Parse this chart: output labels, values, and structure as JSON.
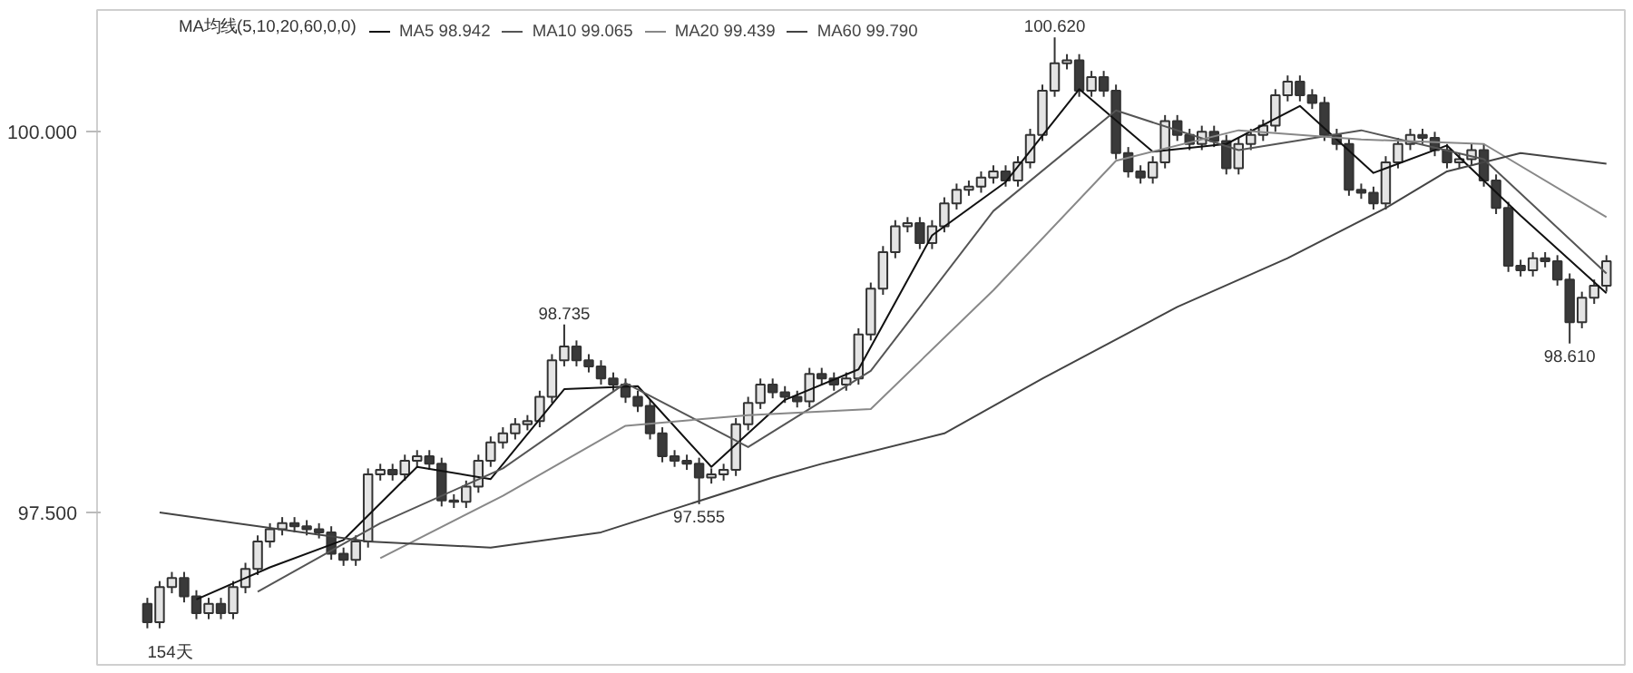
{
  "chart_data": {
    "type": "candlestick",
    "legend_title": "MA均线(5,10,20,60,0,0)",
    "legend": "top left",
    "grid": false,
    "categories": [
      null,
      null,
      null,
      null,
      null,
      null,
      null,
      null,
      null,
      null,
      null,
      null,
      null,
      null,
      null,
      null,
      null,
      null,
      null,
      null,
      null,
      null,
      null,
      null,
      null,
      null,
      null,
      null,
      null,
      null,
      null,
      null,
      null,
      null,
      null,
      null,
      null,
      null,
      null,
      null,
      null,
      null,
      null,
      null,
      null,
      null,
      null,
      null,
      null,
      null,
      null,
      null,
      null,
      null,
      null,
      null,
      null,
      null,
      null,
      null,
      null,
      null,
      null,
      null,
      null,
      null,
      null,
      null,
      null,
      null,
      null,
      null,
      null,
      null,
      null,
      null,
      null,
      null,
      null,
      null,
      null,
      null,
      null,
      null,
      null,
      null,
      null,
      null,
      null,
      null,
      null,
      null,
      null,
      null,
      null,
      null,
      null,
      null,
      null,
      null,
      null,
      null,
      null,
      null,
      null,
      null,
      null,
      null,
      null,
      null,
      null,
      null,
      null,
      null,
      null,
      null,
      null,
      null,
      null,
      null
    ],
    "ylim": [
      96.5,
      100.8
    ],
    "yticks": [
      {
        "value": 97.5,
        "label": "97.500"
      },
      {
        "value": 100.0,
        "label": "100.000"
      }
    ],
    "ohlc": [
      [
        96.9,
        96.94,
        96.74,
        96.78
      ],
      [
        96.78,
        97.05,
        96.74,
        97.01
      ],
      [
        97.01,
        97.11,
        96.97,
        97.07
      ],
      [
        97.07,
        97.11,
        96.91,
        96.95
      ],
      [
        96.95,
        96.99,
        96.8,
        96.84
      ],
      [
        96.84,
        96.94,
        96.8,
        96.9
      ],
      [
        96.9,
        96.94,
        96.8,
        96.84
      ],
      [
        96.84,
        97.05,
        96.8,
        97.01
      ],
      [
        97.01,
        97.17,
        96.97,
        97.13
      ],
      [
        97.13,
        97.35,
        97.09,
        97.31
      ],
      [
        97.31,
        97.43,
        97.27,
        97.39
      ],
      [
        97.39,
        97.47,
        97.35,
        97.43
      ],
      [
        97.43,
        97.47,
        97.37,
        97.41
      ],
      [
        97.41,
        97.45,
        97.35,
        97.39
      ],
      [
        97.39,
        97.43,
        97.33,
        97.37
      ],
      [
        97.37,
        97.41,
        97.19,
        97.23
      ],
      [
        97.23,
        97.27,
        97.15,
        97.19
      ],
      [
        97.19,
        97.35,
        97.15,
        97.31
      ],
      [
        97.31,
        97.79,
        97.27,
        97.75
      ],
      [
        97.75,
        97.82,
        97.71,
        97.78
      ],
      [
        97.78,
        97.82,
        97.71,
        97.75
      ],
      [
        97.75,
        97.88,
        97.71,
        97.84
      ],
      [
        97.84,
        97.91,
        97.8,
        97.87
      ],
      [
        97.87,
        97.91,
        97.78,
        97.82
      ],
      [
        97.82,
        97.86,
        97.54,
        97.58
      ],
      [
        97.58,
        97.62,
        97.53,
        97.57
      ],
      [
        97.57,
        97.71,
        97.53,
        97.67
      ],
      [
        97.67,
        97.88,
        97.63,
        97.84
      ],
      [
        97.84,
        98.0,
        97.8,
        97.96
      ],
      [
        97.96,
        98.06,
        97.92,
        98.02
      ],
      [
        98.02,
        98.12,
        97.98,
        98.08
      ],
      [
        98.08,
        98.14,
        98.04,
        98.1
      ],
      [
        98.1,
        98.3,
        98.06,
        98.26
      ],
      [
        98.26,
        98.54,
        98.22,
        98.5
      ],
      [
        98.5,
        98.735,
        98.46,
        98.59
      ],
      [
        98.59,
        98.63,
        98.46,
        98.5
      ],
      [
        98.5,
        98.54,
        98.42,
        98.46
      ],
      [
        98.46,
        98.5,
        98.34,
        98.38
      ],
      [
        98.38,
        98.42,
        98.3,
        98.34
      ],
      [
        98.34,
        98.38,
        98.22,
        98.26
      ],
      [
        98.26,
        98.3,
        98.16,
        98.2
      ],
      [
        98.2,
        98.24,
        97.98,
        98.02
      ],
      [
        98.02,
        98.06,
        97.83,
        97.87
      ],
      [
        97.87,
        97.91,
        97.8,
        97.84
      ],
      [
        97.84,
        97.88,
        97.78,
        97.82
      ],
      [
        97.82,
        97.86,
        97.555,
        97.73
      ],
      [
        97.73,
        97.79,
        97.69,
        97.75
      ],
      [
        97.75,
        97.82,
        97.71,
        97.78
      ],
      [
        97.78,
        98.12,
        97.74,
        98.08
      ],
      [
        98.08,
        98.26,
        98.04,
        98.22
      ],
      [
        98.22,
        98.38,
        98.18,
        98.34
      ],
      [
        98.34,
        98.38,
        98.25,
        98.29
      ],
      [
        98.29,
        98.33,
        98.22,
        98.26
      ],
      [
        98.26,
        98.3,
        98.19,
        98.23
      ],
      [
        98.23,
        98.45,
        98.19,
        98.41
      ],
      [
        98.41,
        98.45,
        98.34,
        98.38
      ],
      [
        98.38,
        98.42,
        98.3,
        98.34
      ],
      [
        98.34,
        98.42,
        98.3,
        98.38
      ],
      [
        98.38,
        98.71,
        98.34,
        98.67
      ],
      [
        98.67,
        99.01,
        98.63,
        98.97
      ],
      [
        98.97,
        99.25,
        98.93,
        99.21
      ],
      [
        99.21,
        99.42,
        99.17,
        99.38
      ],
      [
        99.38,
        99.44,
        99.34,
        99.4
      ],
      [
        99.4,
        99.44,
        99.23,
        99.27
      ],
      [
        99.27,
        99.42,
        99.23,
        99.38
      ],
      [
        99.38,
        99.57,
        99.34,
        99.53
      ],
      [
        99.53,
        99.66,
        99.49,
        99.62
      ],
      [
        99.62,
        99.68,
        99.58,
        99.64
      ],
      [
        99.64,
        99.74,
        99.6,
        99.7
      ],
      [
        99.7,
        99.78,
        99.66,
        99.74
      ],
      [
        99.74,
        99.78,
        99.64,
        99.68
      ],
      [
        99.68,
        99.84,
        99.64,
        99.8
      ],
      [
        99.8,
        100.02,
        99.76,
        99.98
      ],
      [
        99.98,
        100.31,
        99.94,
        100.27
      ],
      [
        100.27,
        100.62,
        100.23,
        100.45
      ],
      [
        100.45,
        100.51,
        100.41,
        100.47
      ],
      [
        100.47,
        100.51,
        100.23,
        100.27
      ],
      [
        100.27,
        100.4,
        100.23,
        100.36
      ],
      [
        100.36,
        100.4,
        100.23,
        100.27
      ],
      [
        100.27,
        100.31,
        99.82,
        99.86
      ],
      [
        99.86,
        99.9,
        99.7,
        99.74
      ],
      [
        99.74,
        99.78,
        99.66,
        99.7
      ],
      [
        99.7,
        99.84,
        99.66,
        99.8
      ],
      [
        99.8,
        100.11,
        99.76,
        100.07
      ],
      [
        100.07,
        100.11,
        99.94,
        99.98
      ],
      [
        99.98,
        100.02,
        99.88,
        99.92
      ],
      [
        99.92,
        100.04,
        99.88,
        100.0
      ],
      [
        100.0,
        100.04,
        99.9,
        99.94
      ],
      [
        99.94,
        99.98,
        99.72,
        99.76
      ],
      [
        99.76,
        99.96,
        99.72,
        99.92
      ],
      [
        99.92,
        100.02,
        99.88,
        99.98
      ],
      [
        99.98,
        100.08,
        99.94,
        100.04
      ],
      [
        100.04,
        100.28,
        100.0,
        100.24
      ],
      [
        100.24,
        100.37,
        100.2,
        100.33
      ],
      [
        100.33,
        100.37,
        100.2,
        100.24
      ],
      [
        100.24,
        100.28,
        100.15,
        100.19
      ],
      [
        100.19,
        100.23,
        99.94,
        99.98
      ],
      [
        99.98,
        100.02,
        99.88,
        99.92
      ],
      [
        99.92,
        99.96,
        99.58,
        99.62
      ],
      [
        99.62,
        99.66,
        99.56,
        99.6
      ],
      [
        99.6,
        99.64,
        99.49,
        99.53
      ],
      [
        99.53,
        99.84,
        99.49,
        99.8
      ],
      [
        99.8,
        99.96,
        99.76,
        99.92
      ],
      [
        99.92,
        100.02,
        99.88,
        99.98
      ],
      [
        99.98,
        100.02,
        99.92,
        99.96
      ],
      [
        99.96,
        100.0,
        99.84,
        99.88
      ],
      [
        99.88,
        99.92,
        99.76,
        99.8
      ],
      [
        99.8,
        99.86,
        99.76,
        99.82
      ],
      [
        99.82,
        99.92,
        99.78,
        99.88
      ],
      [
        99.88,
        99.92,
        99.64,
        99.68
      ],
      [
        99.68,
        99.72,
        99.46,
        99.5
      ],
      [
        99.5,
        99.54,
        99.08,
        99.12
      ],
      [
        99.12,
        99.16,
        99.05,
        99.09
      ],
      [
        99.09,
        99.21,
        99.05,
        99.17
      ],
      [
        99.17,
        99.21,
        99.11,
        99.15
      ],
      [
        99.15,
        99.19,
        98.99,
        99.03
      ],
      [
        99.03,
        99.07,
        98.61,
        98.75
      ],
      [
        98.75,
        98.95,
        98.71,
        98.91
      ],
      [
        98.91,
        99.03,
        98.87,
        98.99
      ],
      [
        98.99,
        99.19,
        98.95,
        99.15
      ]
    ],
    "series": [
      {
        "name": "MA5 98.942",
        "type": "line",
        "color": "#111111",
        "values": [
          null,
          null,
          null,
          null,
          96.93,
          null,
          null,
          null,
          null,
          null,
          97.14,
          null,
          null,
          null,
          null,
          null,
          97.32,
          null,
          null,
          null,
          null,
          null,
          97.8,
          null,
          null,
          null,
          null,
          null,
          97.72,
          null,
          null,
          null,
          null,
          null,
          98.31,
          null,
          null,
          null,
          null,
          null,
          98.33,
          null,
          null,
          null,
          null,
          null,
          97.8,
          null,
          null,
          null,
          null,
          null,
          98.24,
          null,
          null,
          null,
          null,
          null,
          98.44,
          null,
          null,
          null,
          null,
          null,
          99.32,
          null,
          null,
          null,
          null,
          null,
          99.67,
          null,
          null,
          null,
          null,
          null,
          100.28,
          null,
          null,
          null,
          null,
          null,
          99.87,
          null,
          null,
          null,
          null,
          null,
          99.92,
          null,
          null,
          null,
          null,
          null,
          100.17,
          null,
          null,
          null,
          null,
          null,
          99.73,
          null,
          null,
          null,
          null,
          null,
          99.91,
          null,
          null,
          null,
          null,
          null,
          99.45,
          null,
          null,
          null,
          null,
          null,
          null,
          98.94
        ]
      },
      {
        "name": "MA10 99.065",
        "type": "line",
        "color": "#555555",
        "values": [
          null,
          null,
          null,
          null,
          null,
          null,
          null,
          null,
          null,
          96.98,
          null,
          null,
          null,
          null,
          null,
          null,
          null,
          null,
          null,
          97.43,
          null,
          null,
          null,
          null,
          null,
          null,
          null,
          null,
          null,
          97.79,
          null,
          null,
          null,
          null,
          null,
          null,
          null,
          null,
          null,
          98.35,
          null,
          null,
          null,
          null,
          null,
          null,
          null,
          null,
          null,
          97.93,
          null,
          null,
          null,
          null,
          null,
          null,
          null,
          null,
          null,
          98.43,
          null,
          null,
          null,
          null,
          null,
          null,
          null,
          null,
          null,
          99.48,
          null,
          null,
          null,
          null,
          null,
          null,
          null,
          null,
          null,
          100.14,
          null,
          null,
          null,
          null,
          null,
          null,
          null,
          null,
          null,
          99.88,
          null,
          null,
          null,
          null,
          null,
          null,
          null,
          null,
          null,
          100.01,
          null,
          null,
          null,
          null,
          null,
          null,
          null,
          null,
          null,
          99.82,
          null,
          null,
          null,
          null,
          null,
          null,
          null,
          null,
          null,
          99.07
        ]
      },
      {
        "name": "MA20 99.439",
        "type": "line",
        "color": "#888888",
        "values": [
          null,
          null,
          null,
          null,
          null,
          null,
          null,
          null,
          null,
          null,
          null,
          null,
          null,
          null,
          null,
          null,
          null,
          null,
          null,
          97.2,
          null,
          null,
          null,
          null,
          null,
          null,
          null,
          null,
          null,
          97.61,
          null,
          null,
          null,
          null,
          null,
          null,
          null,
          null,
          null,
          98.07,
          null,
          null,
          null,
          null,
          null,
          null,
          null,
          null,
          null,
          98.14,
          null,
          null,
          null,
          null,
          null,
          null,
          null,
          null,
          null,
          98.18,
          null,
          null,
          null,
          null,
          null,
          null,
          null,
          null,
          null,
          98.96,
          null,
          null,
          null,
          null,
          null,
          null,
          null,
          null,
          null,
          99.81,
          null,
          null,
          null,
          null,
          null,
          null,
          null,
          null,
          null,
          100.01,
          null,
          null,
          null,
          null,
          null,
          null,
          null,
          null,
          null,
          99.95,
          null,
          null,
          null,
          null,
          null,
          null,
          null,
          null,
          null,
          99.92,
          null,
          null,
          null,
          null,
          null,
          null,
          null,
          null,
          null,
          99.44
        ]
      },
      {
        "name": "MA60 99.790",
        "type": "line",
        "color": "#444444",
        "values": [
          null,
          97.5,
          null,
          null,
          null,
          null,
          null,
          null,
          null,
          null,
          null,
          null,
          null,
          null,
          null,
          null,
          null,
          null,
          97.31,
          null,
          null,
          null,
          null,
          null,
          null,
          null,
          null,
          null,
          97.27,
          null,
          null,
          null,
          null,
          null,
          null,
          null,
          null,
          97.37,
          null,
          null,
          null,
          null,
          null,
          null,
          null,
          null,
          null,
          null,
          null,
          null,
          null,
          97.73,
          null,
          null,
          null,
          97.82,
          null,
          null,
          null,
          null,
          null,
          null,
          null,
          null,
          null,
          98.02,
          null,
          null,
          null,
          null,
          null,
          null,
          null,
          98.38,
          null,
          null,
          null,
          null,
          null,
          null,
          null,
          null,
          null,
          null,
          98.85,
          null,
          null,
          null,
          null,
          null,
          null,
          null,
          null,
          99.17,
          null,
          null,
          null,
          null,
          null,
          null,
          null,
          99.5,
          null,
          null,
          null,
          null,
          99.74,
          null,
          null,
          null,
          null,
          null,
          99.86,
          null,
          null,
          null,
          null,
          null,
          null,
          99.79
        ]
      }
    ],
    "annotations": [
      {
        "text": "98.735",
        "y": 98.735
      },
      {
        "text": "97.555",
        "y": 97.555
      },
      {
        "text": "100.620",
        "y": 100.62
      },
      {
        "text": "98.610",
        "y": 98.61
      },
      "154天"
    ]
  }
}
